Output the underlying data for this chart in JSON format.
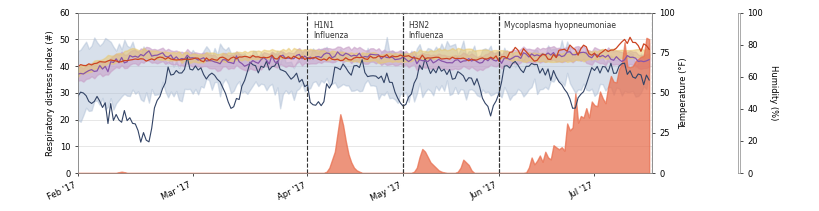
{
  "ylabel_left": "Respiratory distress index (#)",
  "ylabel_right1": "Temperature (°F)",
  "ylabel_right2": "Humidity (%)",
  "xlim": [
    0,
    210
  ],
  "ylim_left": [
    0,
    60
  ],
  "x_tick_positions": [
    0,
    42,
    84,
    119,
    154,
    189
  ],
  "x_tick_labels": [
    "Feb '17",
    "Mar '17",
    "Apr '17",
    "May '17",
    "Jun '17",
    "Jul '17"
  ],
  "episodes": [
    {
      "label": "H1N1\nInfluenza",
      "x_start": 84,
      "x_end": 119
    },
    {
      "label": "H3N2\nInfluenza",
      "x_start": 119,
      "x_end": 154
    },
    {
      "label": "Mycoplasma hyopneumoniae",
      "x_start": 154,
      "x_end": 210
    }
  ],
  "background_color": "#ffffff",
  "grid_color": "#dddddd",
  "band_blue_color": "#aabcd4",
  "band_blue_alpha": 0.45,
  "band_purple_color": "#c8a0c8",
  "band_purple_alpha": 0.6,
  "band_yellow_color": "#e8c870",
  "band_yellow_alpha": 0.55,
  "line_dark_color": "#334466",
  "line_purple_color": "#8855aa",
  "line_red_color": "#cc4422",
  "fill_orange_color": "#e87050",
  "fill_orange_alpha": 0.75
}
